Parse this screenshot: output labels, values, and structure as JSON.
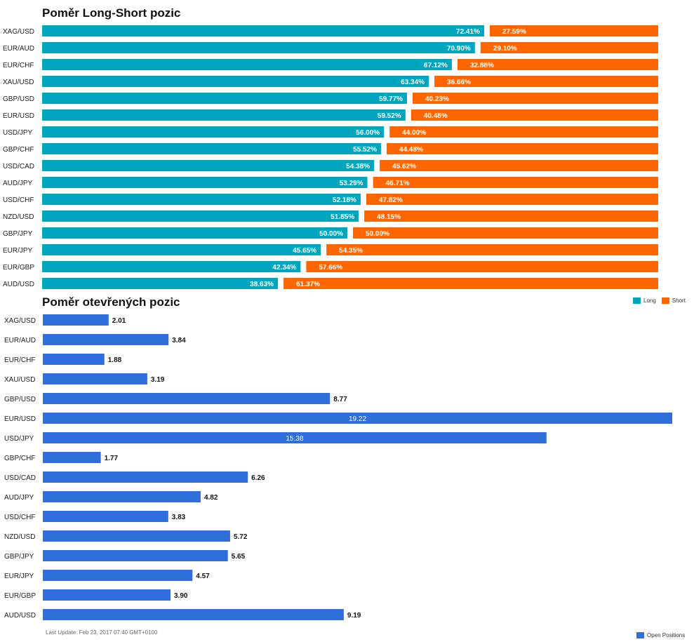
{
  "colors": {
    "long": "#00a5be",
    "short": "#ff6600",
    "open": "#2f6fdc"
  },
  "chart_data": [
    {
      "type": "bar",
      "orientation": "horizontal",
      "stacked": true,
      "title": "Poměr Long-Short pozic",
      "categories": [
        "XAG/USD",
        "EUR/AUD",
        "EUR/CHF",
        "XAU/USD",
        "GBP/USD",
        "EUR/USD",
        "USD/JPY",
        "GBP/CHF",
        "USD/CAD",
        "AUD/JPY",
        "USD/CHF",
        "NZD/USD",
        "GBP/JPY",
        "EUR/JPY",
        "EUR/GBP",
        "AUD/USD"
      ],
      "series": [
        {
          "name": "Long",
          "values": [
            72.41,
            70.9,
            67.12,
            63.34,
            59.77,
            59.52,
            56.0,
            55.52,
            54.38,
            53.29,
            52.18,
            51.85,
            50.0,
            45.65,
            42.34,
            38.63
          ],
          "labels": [
            "72.41%",
            "70.90%",
            "67.12%",
            "63.34%",
            "59.77%",
            "59.52%",
            "56.00%",
            "55.52%",
            "54.38%",
            "53.29%",
            "52.18%",
            "51.85%",
            "50.00%",
            "45.65%",
            "42.34%",
            "38.63%"
          ]
        },
        {
          "name": "Short",
          "values": [
            27.59,
            29.1,
            32.88,
            36.66,
            40.23,
            40.48,
            44.0,
            44.48,
            45.62,
            46.71,
            47.82,
            48.15,
            50.0,
            54.35,
            57.66,
            61.37
          ],
          "labels": [
            "27.59%",
            "29.10%",
            "32.88%",
            "36.66%",
            "40.23%",
            "40.48%",
            "44.00%",
            "44.48%",
            "45.62%",
            "46.71%",
            "47.82%",
            "48.15%",
            "50.00%",
            "54.35%",
            "57.66%",
            "61.37%"
          ]
        }
      ],
      "xlim": [
        0,
        100
      ],
      "legend": "bottom-right"
    },
    {
      "type": "bar",
      "orientation": "horizontal",
      "title": "Poměr otevřených pozic",
      "categories": [
        "XAG/USD",
        "EUR/AUD",
        "EUR/CHF",
        "XAU/USD",
        "GBP/USD",
        "EUR/USD",
        "USD/JPY",
        "GBP/CHF",
        "USD/CAD",
        "AUD/JPY",
        "USD/CHF",
        "NZD/USD",
        "GBP/JPY",
        "EUR/JPY",
        "EUR/GBP",
        "AUD/USD"
      ],
      "series": [
        {
          "name": "Open Positions",
          "values": [
            2.01,
            3.84,
            1.88,
            3.19,
            8.77,
            19.22,
            15.38,
            1.77,
            6.26,
            4.82,
            3.83,
            5.72,
            5.65,
            4.57,
            3.9,
            9.19
          ],
          "labels": [
            "2.01",
            "3.84",
            "1.88",
            "3.19",
            "8.77",
            "19.22",
            "15.38",
            "1.77",
            "6.26",
            "4.82",
            "3.83",
            "5.72",
            "5.65",
            "4.57",
            "3.90",
            "9.19"
          ]
        }
      ],
      "xlim": [
        0,
        19.22
      ],
      "legend": "bottom-right"
    }
  ],
  "legend_long_short": {
    "long": "Long",
    "short": "Short"
  },
  "legend_open": "Open Positions",
  "update_note": "Last Update: Feb 23, 2017 07:40 GMT+0100"
}
